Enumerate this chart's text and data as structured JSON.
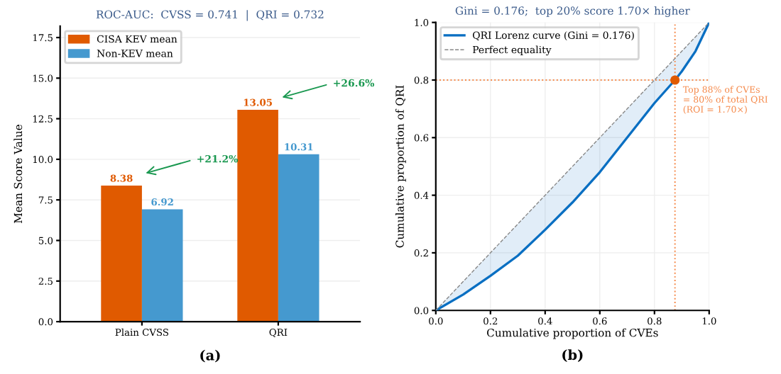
{
  "chart_data": [
    {
      "type": "bar",
      "title": "ROC-AUC:  CVSS = 0.741  |  QRI = 0.732",
      "ylabel": "Mean Score Value",
      "categories": [
        "Plain CVSS",
        "QRI"
      ],
      "series": [
        {
          "name": "CISA KEV mean",
          "color": "#e05a00",
          "values": [
            8.38,
            13.05
          ]
        },
        {
          "name": "Non-KEV mean",
          "color": "#4599cf",
          "values": [
            6.92,
            10.31
          ]
        }
      ],
      "ylim": [
        0,
        18.2
      ],
      "yticks": [
        {
          "value": 0,
          "label": "0.0"
        },
        2.5,
        {
          "value": 5,
          "label": "5.0"
        },
        7.5,
        {
          "value": 10,
          "label": "10.0"
        },
        12.5,
        {
          "value": 15,
          "label": "15.0"
        },
        17.5
      ],
      "data_labels": true,
      "grid": "y",
      "legend": "top left",
      "annotations": [
        "+21.2%",
        "+26.6%",
        "(a)"
      ]
    },
    {
      "type": "line",
      "title": "Gini = 0.176;  top 20% score 1.70× higher",
      "xlabel": "Cumulative proportion of CVEs",
      "ylabel": "Cumulative proportion of QRI",
      "series": [
        {
          "name": "QRI Lorenz curve (Gini = 0.176)",
          "color": "#0a6fc2",
          "line_style": "solid",
          "x": [
            0,
            0.1,
            0.2,
            0.3,
            0.4,
            0.5,
            0.6,
            0.7,
            0.8,
            0.875,
            0.9,
            0.95,
            1.0
          ],
          "values": [
            0,
            0.055,
            0.12,
            0.19,
            0.28,
            0.375,
            0.48,
            0.6,
            0.72,
            0.8,
            0.83,
            0.9,
            1.0
          ],
          "lower": [
            0,
            0.055,
            0.12,
            0.19,
            0.28,
            0.375,
            0.48,
            0.6,
            0.72,
            0.8,
            0.83,
            0.9,
            1.0
          ],
          "upper": [
            0,
            0.1,
            0.2,
            0.3,
            0.4,
            0.5,
            0.6,
            0.7,
            0.8,
            0.875,
            0.9,
            0.95,
            1.0
          ]
        },
        {
          "name": "Perfect equality",
          "color": "#888888",
          "line_style": "dashed",
          "x": [
            0,
            1
          ],
          "values": [
            0,
            1
          ]
        },
        {
          "type": "scatter",
          "color": "#e05a00",
          "marker": "circle",
          "x": [
            0.875
          ],
          "values": [
            0.8
          ]
        }
      ],
      "xlim": [
        0,
        1
      ],
      "ylim": [
        0,
        1
      ],
      "xticks": [
        {
          "value": 0,
          "label": "0.0"
        },
        0.2,
        0.4,
        0.6,
        0.8,
        {
          "value": 1,
          "label": "1.0"
        }
      ],
      "yticks": [
        {
          "value": 0,
          "label": "0.0"
        },
        0.2,
        0.4,
        0.6,
        0.8,
        {
          "value": 1,
          "label": "1.0"
        }
      ],
      "ref_lines": [
        {
          "axis": "x",
          "value": 0.875,
          "color": "#f5894a",
          "line_style": "dotted"
        },
        {
          "axis": "y",
          "value": 0.8,
          "color": "#f5894a",
          "line_style": "dotted"
        }
      ],
      "grid": true,
      "legend": "top left",
      "annotations": [
        {
          "text": "Top 88% of CVEs\n= 80% of total QRI\n(ROI = 1.70×)",
          "x": 0.875,
          "y": 0.8
        },
        "(b)"
      ]
    }
  ]
}
